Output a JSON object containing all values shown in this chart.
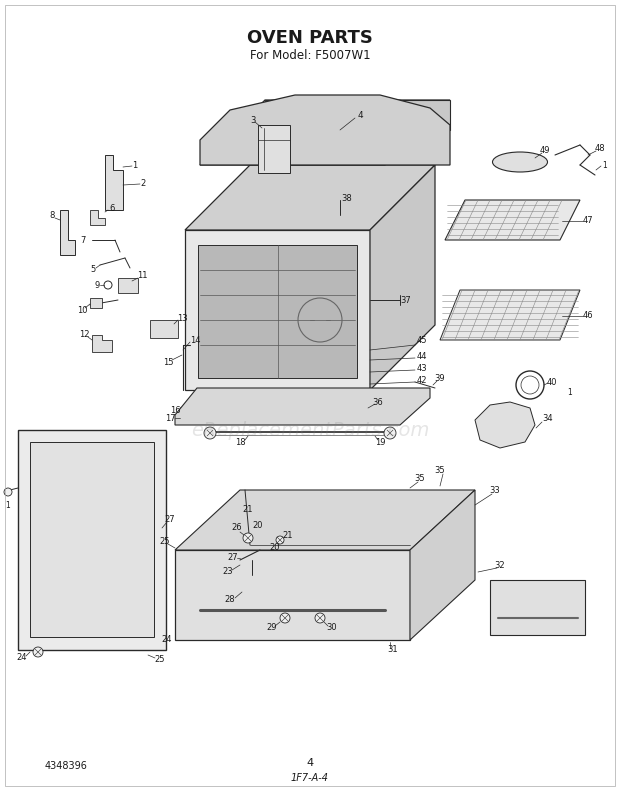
{
  "title": "OVEN PARTS",
  "subtitle": "For Model: F5007W1",
  "title_fontsize": 13,
  "subtitle_fontsize": 8.5,
  "bottom_left_text": "4348396",
  "bottom_center_text": "4",
  "bottom_center2_text": "1F7-A-4",
  "watermark": "eReplacementParts.com",
  "bg_color": "#ffffff",
  "text_color": "#1a1a1a",
  "line_color": "#2a2a2a",
  "fig_width": 6.2,
  "fig_height": 7.91,
  "dpi": 100
}
